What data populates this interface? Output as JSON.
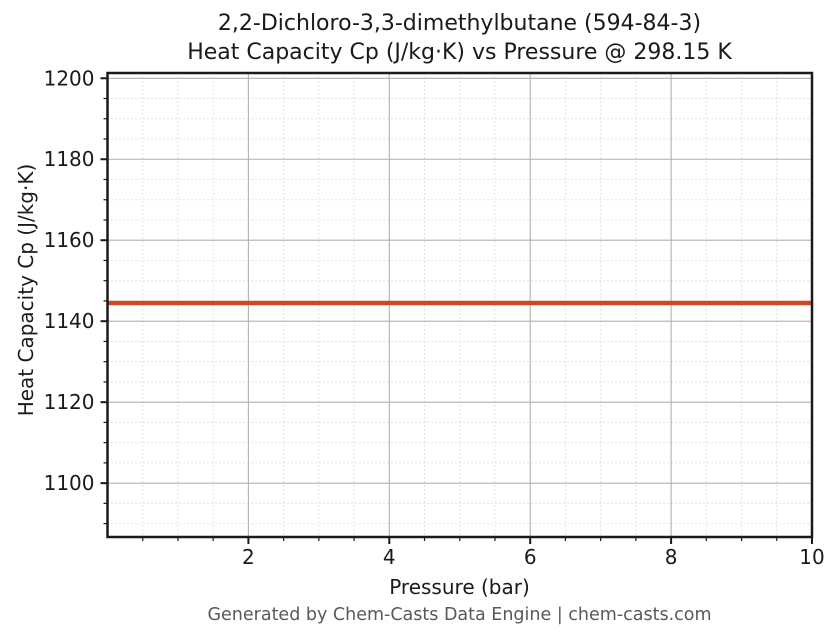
{
  "page": {
    "title_line1": "2,2-Dichloro-3,3-dimethylbutane (594-84-3)",
    "title_line2": "Heat Capacity Cp (J/kg·K) vs Pressure @ 298.15 K",
    "footer": "Generated by Chem-Casts Data Engine | chem-casts.com"
  },
  "chart_data": {
    "type": "line",
    "title": "2,2-Dichloro-3,3-dimethylbutane (594-84-3)",
    "subtitle": "Heat Capacity Cp (J/kg·K) vs Pressure @ 298.15 K",
    "compound": "2,2-Dichloro-3,3-dimethylbutane",
    "cas_number": "594-84-3",
    "temperature_K": "298.15",
    "xlabel": "Pressure (bar)",
    "ylabel": "Heat Capacity Cp (J/kg·K)",
    "x": [
      0,
      1,
      2,
      3,
      4,
      5,
      6,
      7,
      8,
      9,
      10
    ],
    "series": [
      {
        "name": "Heat Capacity Cp",
        "color": "#cc4a26",
        "values": [
          1144.5,
          1144.5,
          1144.5,
          1144.5,
          1144.5,
          1144.5,
          1144.5,
          1144.5,
          1144.5,
          1144.5,
          1144.5
        ]
      }
    ],
    "xlim": [
      0,
      10
    ],
    "ylim": [
      1086.7,
      1201.3
    ],
    "xticks": [
      2,
      4,
      6,
      8,
      10
    ],
    "yticks": [
      1100,
      1120,
      1140,
      1160,
      1180,
      1200
    ],
    "minor_x_step": 0.5,
    "minor_y_step": 5,
    "grid": {
      "major": true,
      "minor": true,
      "major_color": "#b0b0b0",
      "minor_color": "#d9d9d9"
    },
    "legend": "none",
    "line_width": 4.5,
    "axis_color": "#1a1a1a",
    "tick_label_color": "#1a1a1a"
  }
}
